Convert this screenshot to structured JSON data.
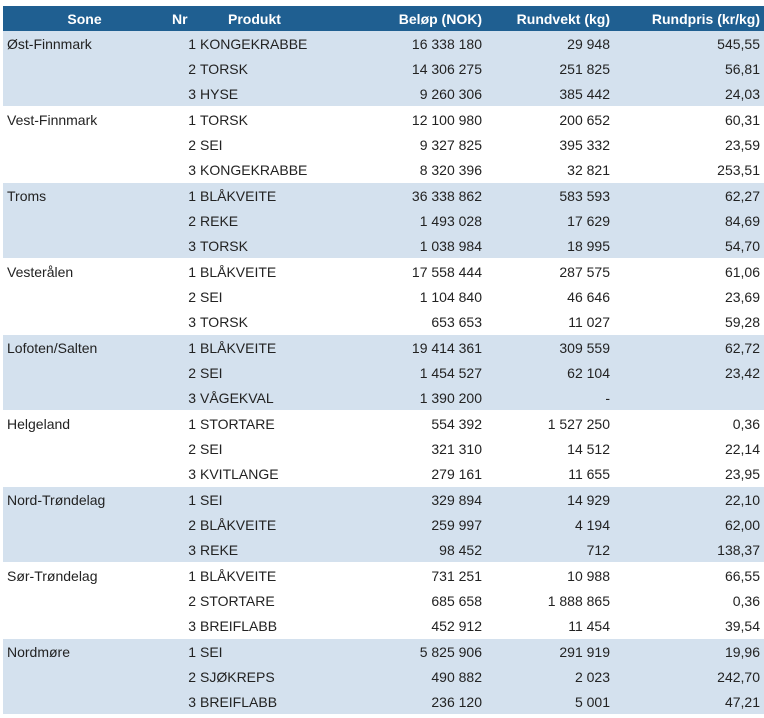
{
  "headers": [
    "Sone",
    "Nr",
    "Produkt",
    "Beløp (NOK)",
    "Rundvekt (kg)",
    "Rundpris (kr/kg)"
  ],
  "zones": [
    {
      "name": "Øst-Finnmark",
      "shaded": true,
      "rows": [
        {
          "nr": "1",
          "product": "KONGEKRABBE",
          "amount": "16 338 180",
          "weight": "29 948",
          "price": "545,55"
        },
        {
          "nr": "2",
          "product": "TORSK",
          "amount": "14 306 275",
          "weight": "251 825",
          "price": "56,81"
        },
        {
          "nr": "3",
          "product": "HYSE",
          "amount": "9 260 306",
          "weight": "385 442",
          "price": "24,03"
        }
      ]
    },
    {
      "name": "Vest-Finnmark",
      "shaded": false,
      "rows": [
        {
          "nr": "1",
          "product": "TORSK",
          "amount": "12 100 980",
          "weight": "200 652",
          "price": "60,31"
        },
        {
          "nr": "2",
          "product": "SEI",
          "amount": "9 327 825",
          "weight": "395 332",
          "price": "23,59"
        },
        {
          "nr": "3",
          "product": "KONGEKRABBE",
          "amount": "8 320 396",
          "weight": "32 821",
          "price": "253,51"
        }
      ]
    },
    {
      "name": "Troms",
      "shaded": true,
      "rows": [
        {
          "nr": "1",
          "product": "BLÅKVEITE",
          "amount": "36 338 862",
          "weight": "583 593",
          "price": "62,27"
        },
        {
          "nr": "2",
          "product": "REKE",
          "amount": "1 493 028",
          "weight": "17 629",
          "price": "84,69"
        },
        {
          "nr": "3",
          "product": "TORSK",
          "amount": "1 038 984",
          "weight": "18 995",
          "price": "54,70"
        }
      ]
    },
    {
      "name": "Vesterålen",
      "shaded": false,
      "rows": [
        {
          "nr": "1",
          "product": "BLÅKVEITE",
          "amount": "17 558 444",
          "weight": "287 575",
          "price": "61,06"
        },
        {
          "nr": "2",
          "product": "SEI",
          "amount": "1 104 840",
          "weight": "46 646",
          "price": "23,69"
        },
        {
          "nr": "3",
          "product": "TORSK",
          "amount": "653 653",
          "weight": "11 027",
          "price": "59,28"
        }
      ]
    },
    {
      "name": "Lofoten/Salten",
      "shaded": true,
      "rows": [
        {
          "nr": "1",
          "product": "BLÅKVEITE",
          "amount": "19 414 361",
          "weight": "309 559",
          "price": "62,72"
        },
        {
          "nr": "2",
          "product": "SEI",
          "amount": "1 454 527",
          "weight": "62 104",
          "price": "23,42"
        },
        {
          "nr": "3",
          "product": "VÅGEKVAL",
          "amount": "1 390 200",
          "weight": "-",
          "price": ""
        }
      ]
    },
    {
      "name": "Helgeland",
      "shaded": false,
      "rows": [
        {
          "nr": "1",
          "product": "STORTARE",
          "amount": "554 392",
          "weight": "1 527 250",
          "price": "0,36"
        },
        {
          "nr": "2",
          "product": "SEI",
          "amount": "321 310",
          "weight": "14 512",
          "price": "22,14"
        },
        {
          "nr": "3",
          "product": "KVITLANGE",
          "amount": "279 161",
          "weight": "11 655",
          "price": "23,95"
        }
      ]
    },
    {
      "name": "Nord-Trøndelag",
      "shaded": true,
      "rows": [
        {
          "nr": "1",
          "product": "SEI",
          "amount": "329 894",
          "weight": "14 929",
          "price": "22,10"
        },
        {
          "nr": "2",
          "product": "BLÅKVEITE",
          "amount": "259 997",
          "weight": "4 194",
          "price": "62,00"
        },
        {
          "nr": "3",
          "product": "REKE",
          "amount": "98 452",
          "weight": "712",
          "price": "138,37"
        }
      ]
    },
    {
      "name": "Sør-Trøndelag",
      "shaded": false,
      "rows": [
        {
          "nr": "1",
          "product": "BLÅKVEITE",
          "amount": "731 251",
          "weight": "10 988",
          "price": "66,55"
        },
        {
          "nr": "2",
          "product": "STORTARE",
          "amount": "685 658",
          "weight": "1 888 865",
          "price": "0,36"
        },
        {
          "nr": "3",
          "product": "BREIFLABB",
          "amount": "452 912",
          "weight": "11 454",
          "price": "39,54"
        }
      ]
    },
    {
      "name": "Nordmøre",
      "shaded": true,
      "rows": [
        {
          "nr": "1",
          "product": "SEI",
          "amount": "5 825 906",
          "weight": "291 919",
          "price": "19,96"
        },
        {
          "nr": "2",
          "product": "SJØKREPS",
          "amount": "490 882",
          "weight": "2 023",
          "price": "242,70"
        },
        {
          "nr": "3",
          "product": "BREIFLABB",
          "amount": "236 120",
          "weight": "5 001",
          "price": "47,21"
        }
      ]
    }
  ]
}
